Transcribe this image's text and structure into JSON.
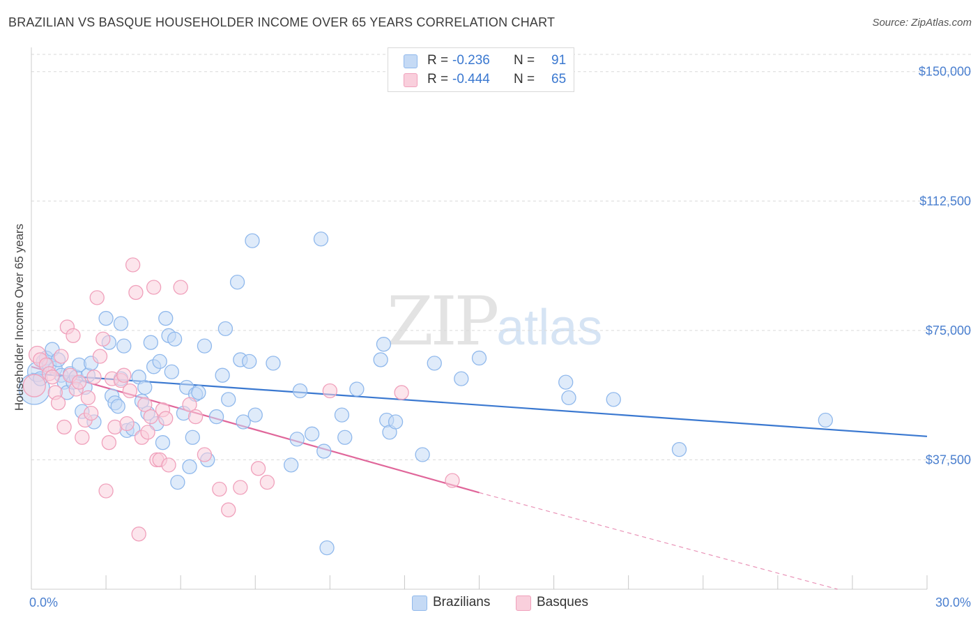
{
  "title": "BRAZILIAN VS BASQUE HOUSEHOLDER INCOME OVER 65 YEARS CORRELATION CHART",
  "source": "Source: ZipAtlas.com",
  "watermark": {
    "zip": "ZIP",
    "atlas": "atlas"
  },
  "legend": {
    "rows": [
      {
        "r_label": "R =",
        "r_value": "-0.236",
        "n_label": "N =",
        "n_value": "91",
        "color": "#8fb8ec",
        "fill": "#c5daf5"
      },
      {
        "r_label": "R =",
        "r_value": "-0.444",
        "n_label": "N =",
        "n_value": "65",
        "color": "#f0a0bb",
        "fill": "#f9cfdc"
      }
    ]
  },
  "bottom_legend": [
    {
      "label": "Brazilians",
      "fill": "#c5daf5",
      "stroke": "#8fb8ec"
    },
    {
      "label": "Basques",
      "fill": "#f9cfdc",
      "stroke": "#f0a0bb"
    }
  ],
  "chart_data": {
    "type": "scatter",
    "title": "BRAZILIAN VS BASQUE HOUSEHOLDER INCOME OVER 65 YEARS CORRELATION CHART",
    "xlabel": "",
    "ylabel": "Householder Income Over 65 years",
    "xlim": [
      0,
      30
    ],
    "ylim": [
      0,
      155000
    ],
    "x_tick_labels": [
      "0.0%",
      "30.0%"
    ],
    "y_ticks": [
      37500,
      75000,
      112500,
      150000
    ],
    "y_tick_labels": [
      "$37,500",
      "$75,000",
      "$112,500",
      "$150,000"
    ],
    "grid": true,
    "legend_position": "top-center",
    "series": [
      {
        "name": "Brazilians",
        "color": "#3a78d0",
        "fill": "#c5daf5",
        "stroke": "#8fb8ec",
        "trend": {
          "x0": 0,
          "y0": 62500,
          "x1": 30,
          "y1": 44300,
          "dashed_after": null
        },
        "points": [
          [
            0.1,
            58000,
            22
          ],
          [
            0.2,
            63000,
            14
          ],
          [
            0.3,
            61000,
            10
          ],
          [
            0.4,
            66000,
            10
          ],
          [
            0.5,
            67000,
            10
          ],
          [
            0.6,
            65000,
            10
          ],
          [
            0.7,
            69500,
            10
          ],
          [
            0.8,
            64000,
            10
          ],
          [
            0.9,
            66500,
            10
          ],
          [
            1.0,
            62000,
            10
          ],
          [
            1.1,
            60000,
            10
          ],
          [
            1.2,
            57000,
            10
          ],
          [
            1.3,
            62500,
            10
          ],
          [
            1.4,
            60000,
            10
          ],
          [
            1.5,
            61500,
            10
          ],
          [
            1.6,
            65000,
            10
          ],
          [
            1.7,
            51500,
            10
          ],
          [
            1.8,
            58500,
            10
          ],
          [
            1.9,
            62000,
            10
          ],
          [
            2.0,
            65500,
            10
          ],
          [
            2.1,
            48500,
            10
          ],
          [
            2.5,
            78500,
            10
          ],
          [
            2.6,
            71500,
            10
          ],
          [
            2.7,
            56000,
            10
          ],
          [
            2.8,
            54000,
            10
          ],
          [
            2.9,
            53000,
            10
          ],
          [
            3.0,
            61000,
            10
          ],
          [
            3.0,
            77000,
            10
          ],
          [
            3.1,
            70500,
            10
          ],
          [
            3.2,
            46000,
            10
          ],
          [
            3.4,
            46500,
            10
          ],
          [
            3.6,
            61500,
            10
          ],
          [
            3.7,
            54500,
            10
          ],
          [
            3.8,
            58500,
            10
          ],
          [
            3.9,
            51000,
            10
          ],
          [
            4.0,
            71500,
            10
          ],
          [
            4.1,
            64500,
            10
          ],
          [
            4.2,
            48000,
            10
          ],
          [
            4.3,
            66000,
            10
          ],
          [
            4.4,
            42500,
            10
          ],
          [
            4.5,
            78500,
            10
          ],
          [
            4.6,
            73500,
            10
          ],
          [
            4.7,
            63000,
            10
          ],
          [
            4.8,
            72500,
            10
          ],
          [
            4.9,
            31000,
            10
          ],
          [
            5.1,
            51000,
            10
          ],
          [
            5.2,
            58500,
            10
          ],
          [
            5.3,
            35500,
            10
          ],
          [
            5.4,
            44000,
            10
          ],
          [
            5.5,
            56500,
            10
          ],
          [
            5.6,
            57000,
            10
          ],
          [
            5.8,
            70500,
            10
          ],
          [
            5.9,
            37500,
            10
          ],
          [
            6.2,
            50000,
            10
          ],
          [
            6.4,
            62000,
            10
          ],
          [
            6.5,
            75500,
            10
          ],
          [
            6.6,
            55000,
            10
          ],
          [
            6.9,
            89000,
            10
          ],
          [
            7.0,
            66500,
            10
          ],
          [
            7.1,
            48500,
            10
          ],
          [
            7.3,
            66000,
            10
          ],
          [
            7.4,
            101000,
            10
          ],
          [
            7.5,
            50500,
            10
          ],
          [
            8.1,
            65500,
            10
          ],
          [
            8.7,
            36000,
            10
          ],
          [
            8.9,
            43500,
            10
          ],
          [
            9.0,
            57500,
            10
          ],
          [
            9.4,
            45000,
            10
          ],
          [
            9.8,
            40000,
            10
          ],
          [
            9.7,
            101500,
            10
          ],
          [
            9.9,
            12000,
            10
          ],
          [
            10.4,
            50500,
            10
          ],
          [
            10.5,
            44000,
            10
          ],
          [
            10.9,
            58000,
            10
          ],
          [
            11.7,
            66500,
            10
          ],
          [
            11.8,
            71000,
            10
          ],
          [
            11.9,
            49000,
            10
          ],
          [
            12.0,
            45500,
            10
          ],
          [
            12.2,
            48500,
            10
          ],
          [
            13.1,
            39000,
            10
          ],
          [
            13.5,
            65500,
            10
          ],
          [
            14.4,
            61000,
            10
          ],
          [
            15.0,
            67000,
            10
          ],
          [
            17.9,
            60000,
            10
          ],
          [
            18.0,
            55500,
            10
          ],
          [
            19.5,
            55000,
            10
          ],
          [
            21.7,
            40500,
            10
          ],
          [
            26.6,
            49000,
            10
          ]
        ]
      },
      {
        "name": "Basques",
        "color": "#e0669a",
        "fill": "#f9cfdc",
        "stroke": "#f0a0bb",
        "trend": {
          "x0": 0,
          "y0": 64500,
          "x1": 15,
          "y1": 28000,
          "dashed_x1": 27,
          "dashed_y1": 0
        },
        "points": [
          [
            0.1,
            59000,
            16
          ],
          [
            0.2,
            68000,
            12
          ],
          [
            0.3,
            66500,
            10
          ],
          [
            0.5,
            65000,
            10
          ],
          [
            0.6,
            62500,
            10
          ],
          [
            0.7,
            61500,
            10
          ],
          [
            0.8,
            57000,
            10
          ],
          [
            0.9,
            54000,
            10
          ],
          [
            1.0,
            67500,
            10
          ],
          [
            1.1,
            47000,
            10
          ],
          [
            1.2,
            76000,
            10
          ],
          [
            1.3,
            62000,
            10
          ],
          [
            1.4,
            73500,
            10
          ],
          [
            1.5,
            58000,
            10
          ],
          [
            1.6,
            60000,
            10
          ],
          [
            1.7,
            44000,
            10
          ],
          [
            1.8,
            49000,
            10
          ],
          [
            1.9,
            55500,
            10
          ],
          [
            2.0,
            51000,
            10
          ],
          [
            2.1,
            61500,
            10
          ],
          [
            2.2,
            84500,
            10
          ],
          [
            2.3,
            67500,
            10
          ],
          [
            2.4,
            72500,
            10
          ],
          [
            2.5,
            28500,
            10
          ],
          [
            2.6,
            42500,
            10
          ],
          [
            2.7,
            61000,
            10
          ],
          [
            2.8,
            47000,
            10
          ],
          [
            3.0,
            60500,
            10
          ],
          [
            3.1,
            62000,
            10
          ],
          [
            3.2,
            48000,
            10
          ],
          [
            3.3,
            57500,
            10
          ],
          [
            3.4,
            94000,
            10
          ],
          [
            3.5,
            86000,
            10
          ],
          [
            3.6,
            16000,
            10
          ],
          [
            3.7,
            44000,
            10
          ],
          [
            3.8,
            53500,
            10
          ],
          [
            3.9,
            45500,
            10
          ],
          [
            4.0,
            50000,
            10
          ],
          [
            4.1,
            87500,
            10
          ],
          [
            4.2,
            37500,
            10
          ],
          [
            4.3,
            37500,
            10
          ],
          [
            4.4,
            52000,
            10
          ],
          [
            4.5,
            49500,
            10
          ],
          [
            4.6,
            36000,
            10
          ],
          [
            5.0,
            87500,
            10
          ],
          [
            5.3,
            53500,
            10
          ],
          [
            5.5,
            50000,
            10
          ],
          [
            5.8,
            39000,
            10
          ],
          [
            6.3,
            29000,
            10
          ],
          [
            6.6,
            23000,
            10
          ],
          [
            7.0,
            29500,
            10
          ],
          [
            7.6,
            35000,
            10
          ],
          [
            7.9,
            31000,
            10
          ],
          [
            10.0,
            57500,
            10
          ],
          [
            12.4,
            57000,
            10
          ],
          [
            14.1,
            31500,
            10
          ]
        ]
      }
    ]
  }
}
